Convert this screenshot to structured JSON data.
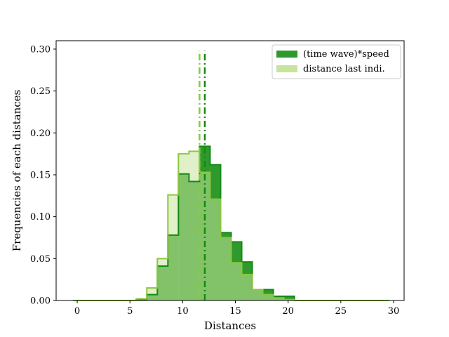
{
  "chart_data": {
    "type": "histogram",
    "xlabel": "Distances",
    "ylabel": "Frequencies of each distances",
    "xlim": [
      -2,
      31
    ],
    "ylim": [
      0,
      0.31
    ],
    "xticks": [
      0,
      5,
      10,
      15,
      20,
      25,
      30
    ],
    "yticks": [
      0.0,
      0.05,
      0.1,
      0.15,
      0.2,
      0.25,
      0.3
    ],
    "ytick_labels": [
      "0.00",
      "0.05",
      "0.10",
      "0.15",
      "0.20",
      "0.25",
      "0.30"
    ],
    "grid": false,
    "legend_position": "top-right",
    "bin_edges": [
      -0.4,
      0.6,
      1.6,
      2.6,
      3.6,
      4.6,
      5.6,
      6.6,
      7.6,
      8.6,
      9.6,
      10.6,
      11.6,
      12.6,
      13.6,
      14.6,
      15.6,
      16.6,
      17.6,
      18.6,
      19.6,
      20.6,
      21.6,
      22.6,
      23.6,
      24.6,
      25.6,
      26.6,
      27.6,
      28.6,
      29.6
    ],
    "series": [
      {
        "name": "(time wave)*speed",
        "fill": "#2e9a2e",
        "edge": "#138a13",
        "mean": 12.1,
        "values": [
          0,
          0,
          0,
          0,
          0,
          0,
          0.001,
          0.007,
          0.041,
          0.078,
          0.151,
          0.142,
          0.184,
          0.162,
          0.081,
          0.07,
          0.046,
          0.013,
          0.013,
          0.005,
          0.005,
          0,
          0,
          0,
          0,
          0,
          0,
          0,
          0,
          0
        ]
      },
      {
        "name": "distance last indi.",
        "fill": "#c8e39a",
        "edge": "#8cc63f",
        "mean": 11.6,
        "values": [
          0,
          0,
          0,
          0,
          0,
          0,
          0.002,
          0.015,
          0.05,
          0.126,
          0.175,
          0.178,
          0.153,
          0.121,
          0.075,
          0.045,
          0.031,
          0.013,
          0.007,
          0.003,
          0.001,
          0,
          0,
          0,
          0,
          0,
          0,
          0,
          0,
          0
        ]
      }
    ]
  }
}
